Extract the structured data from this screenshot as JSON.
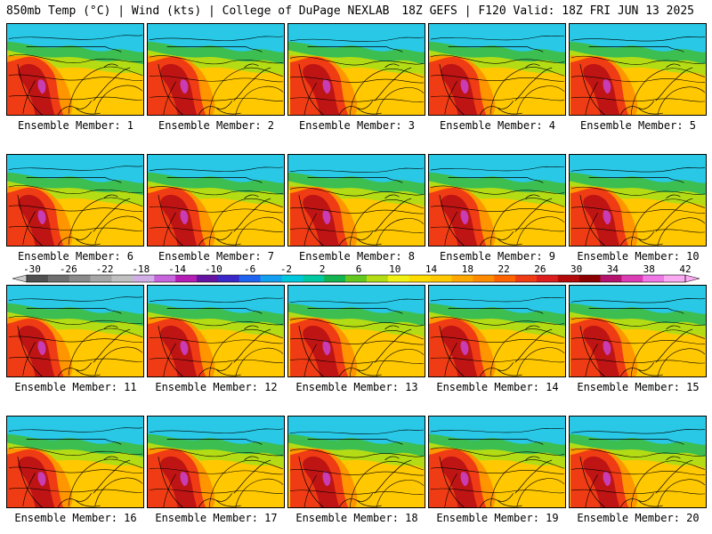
{
  "header": {
    "left": "850mb Temp (°C) | Wind (kts) | College of DuPage NEXLAB",
    "right": "18Z GEFS | F120 Valid: 18Z FRI JUN 13 2025"
  },
  "panels": [
    {
      "label": "Ensemble Member: 1"
    },
    {
      "label": "Ensemble Member: 2"
    },
    {
      "label": "Ensemble Member: 3"
    },
    {
      "label": "Ensemble Member: 4"
    },
    {
      "label": "Ensemble Member: 5"
    },
    {
      "label": "Ensemble Member: 6"
    },
    {
      "label": "Ensemble Member: 7"
    },
    {
      "label": "Ensemble Member: 8"
    },
    {
      "label": "Ensemble Member: 9"
    },
    {
      "label": "Ensemble Member: 10"
    },
    {
      "label": "Ensemble Member: 11"
    },
    {
      "label": "Ensemble Member: 12"
    },
    {
      "label": "Ensemble Member: 13"
    },
    {
      "label": "Ensemble Member: 14"
    },
    {
      "label": "Ensemble Member: 15"
    },
    {
      "label": "Ensemble Member: 16"
    },
    {
      "label": "Ensemble Member: 17"
    },
    {
      "label": "Ensemble Member: 18"
    },
    {
      "label": "Ensemble Member: 19"
    },
    {
      "label": "Ensemble Member: 20"
    }
  ],
  "colorbar": {
    "ticks": [
      "-30",
      "-26",
      "-22",
      "-18",
      "-14",
      "-10",
      "-6",
      "-2",
      "2",
      "6",
      "10",
      "14",
      "18",
      "22",
      "26",
      "30",
      "34",
      "38",
      "42"
    ],
    "colors": [
      "#505050",
      "#6e6e6e",
      "#8a8a8a",
      "#a6a6a6",
      "#c0c0c0",
      "#d2aee6",
      "#c864dc",
      "#b41eb4",
      "#6414a0",
      "#3c28c8",
      "#1e64f0",
      "#14a0f0",
      "#00c8dc",
      "#00c8a0",
      "#14b450",
      "#64c81e",
      "#b4dc14",
      "#f0f014",
      "#ffdc00",
      "#ffc800",
      "#ffa800",
      "#ff8c00",
      "#ff6400",
      "#f03c14",
      "#dc1e1e",
      "#b40a0a",
      "#8c0000",
      "#b4146e",
      "#dc3cb4",
      "#f078e6",
      "#faaaf0"
    ]
  },
  "colors": {
    "cold": "#28c8e6",
    "cool": "#3cbe50",
    "mild": "#b4dc14",
    "warm": "#ffc800",
    "hot": "#ff9600",
    "very_hot": "#f03c14",
    "extreme": "#be1414",
    "peak": "#c83cb4"
  }
}
